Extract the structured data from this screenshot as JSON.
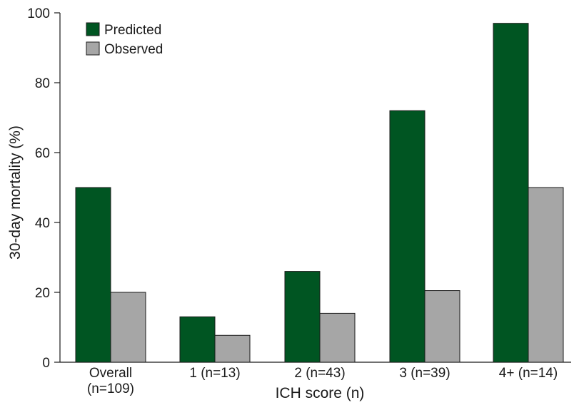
{
  "chart_data": {
    "type": "bar",
    "categories": [
      [
        "Overall",
        "(n=109)"
      ],
      [
        "1 (n=13)"
      ],
      [
        "2 (n=43)"
      ],
      [
        "3 (n=39)"
      ],
      [
        "4+ (n=14)"
      ]
    ],
    "series": [
      {
        "name": "Predicted",
        "color": "#005522",
        "values": [
          50,
          13,
          26,
          72,
          97
        ]
      },
      {
        "name": "Observed",
        "color": "#a6a6a6",
        "values": [
          20,
          7.7,
          14,
          20.5,
          50
        ]
      }
    ],
    "xlabel": "ICH score (n)",
    "ylabel": "30-day mortality (%)",
    "ylim": [
      0,
      100
    ],
    "yticks": [
      0,
      20,
      40,
      60,
      80,
      100
    ],
    "grid": false,
    "legend_position": "top-left",
    "bar_edge_color": "#1a1a1a"
  }
}
